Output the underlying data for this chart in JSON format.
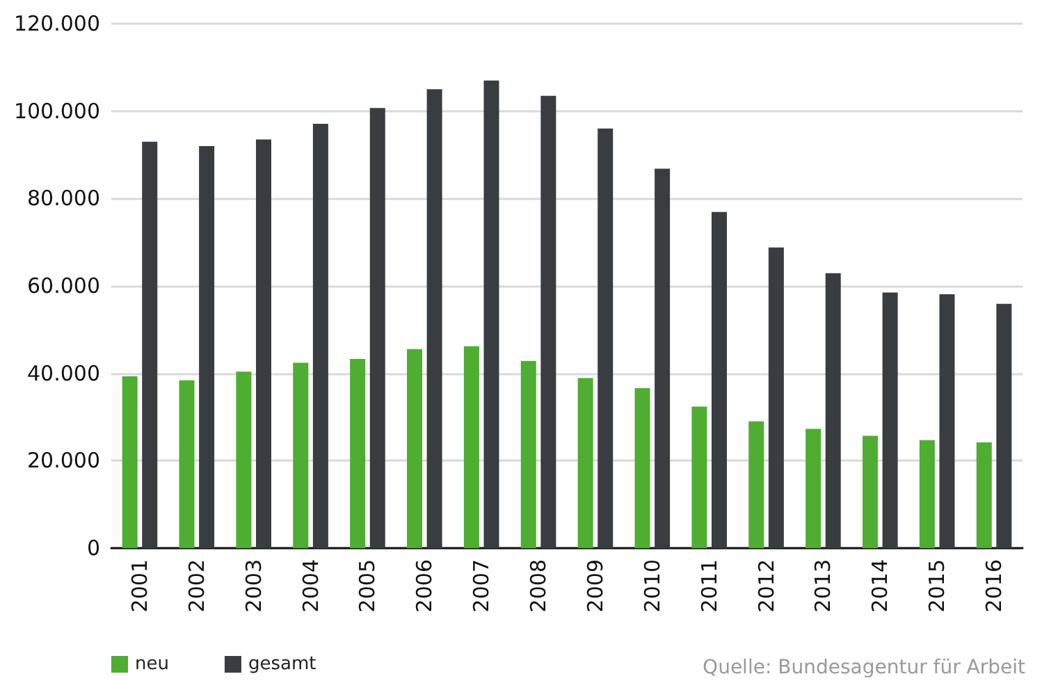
{
  "chart_data": {
    "type": "bar",
    "categories": [
      "2001",
      "2002",
      "2003",
      "2004",
      "2005",
      "2006",
      "2007",
      "2008",
      "2009",
      "2010",
      "2011",
      "2012",
      "2013",
      "2014",
      "2015",
      "2016"
    ],
    "series": [
      {
        "name": "neu",
        "color": "#4fad32",
        "values": [
          39300,
          38400,
          40400,
          42400,
          43300,
          45500,
          46200,
          42800,
          38900,
          36600,
          32400,
          29000,
          27300,
          25700,
          24700,
          24200
        ]
      },
      {
        "name": "gesamt",
        "color": "#393c40",
        "values": [
          93000,
          92000,
          93500,
          97100,
          100700,
          105000,
          107000,
          103500,
          96000,
          86800,
          76900,
          68800,
          62900,
          58500,
          58100,
          55900
        ]
      }
    ],
    "ylim": [
      0,
      120000
    ],
    "yticks": [
      {
        "value": 0,
        "label": "0"
      },
      {
        "value": 20000,
        "label": "20.000"
      },
      {
        "value": 40000,
        "label": "40.000"
      },
      {
        "value": 60000,
        "label": "60.000"
      },
      {
        "value": 80000,
        "label": "80.000"
      },
      {
        "value": 100000,
        "label": "100.000"
      },
      {
        "value": 120000,
        "label": "120.000"
      }
    ],
    "grid": "y",
    "legend": "bottom left",
    "annotations": [
      "Quelle: Bundesagentur für Arbeit"
    ]
  }
}
